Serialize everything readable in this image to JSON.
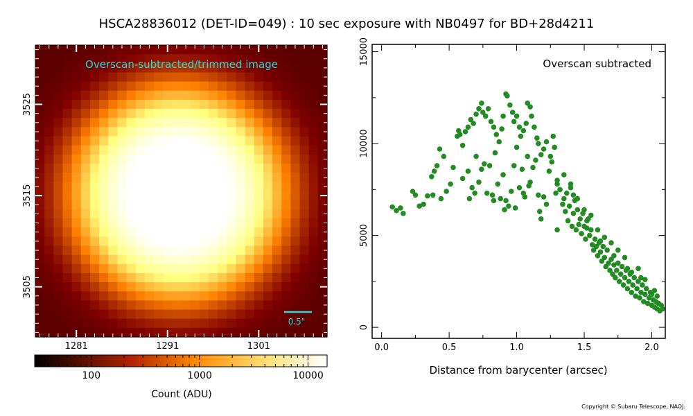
{
  "title": "HSCA28836012 (DET-ID=049) :  10 sec exposure with NB0497 for BD+28d4211",
  "copyright": "Copyright © Subaru Telescope, NAOJ.",
  "image_panel": {
    "label": "Overscan-subtracted/trimmed image",
    "label_color": "#22dddd",
    "scalebar_label": "0.5\"",
    "x_ticks": [
      "1281",
      "1291",
      "1301"
    ],
    "y_ticks": [
      "3505",
      "3515",
      "3525"
    ],
    "x_tick_values": [
      1281,
      1291,
      1301
    ],
    "y_tick_values": [
      3505,
      3515,
      3525
    ],
    "x_range": [
      1276.5,
      1308.5
    ],
    "y_range": [
      3499.5,
      3531.5
    ]
  },
  "colorbar": {
    "label": "Count (ADU)",
    "tick_labels": [
      "100",
      "1000",
      "10000"
    ],
    "range": [
      30,
      15000
    ],
    "scale": "log",
    "colormap": "afmhot"
  },
  "chart_data": {
    "type": "scatter",
    "annotation": "Overscan subtracted",
    "xlabel": "Distance from barycenter (arcsec)",
    "ylabel": "",
    "x_ticks": [
      "0.0",
      "0.5",
      "1.0",
      "1.5",
      "2.0"
    ],
    "y_ticks": [
      "0",
      "5000",
      "10000",
      "15000"
    ],
    "xlim": [
      -0.07,
      2.1
    ],
    "ylim": [
      -600,
      15400
    ],
    "marker_color": "#228b22",
    "series": [
      {
        "points": [
          [
            0.08,
            6550
          ],
          [
            0.11,
            6350
          ],
          [
            0.14,
            6500
          ],
          [
            0.16,
            6200
          ],
          [
            0.23,
            7400
          ],
          [
            0.25,
            7200
          ],
          [
            0.28,
            6600
          ],
          [
            0.31,
            6700
          ],
          [
            0.34,
            7150
          ],
          [
            0.37,
            8200
          ],
          [
            0.39,
            8500
          ],
          [
            0.41,
            8800
          ],
          [
            0.43,
            9700
          ],
          [
            0.46,
            9300
          ],
          [
            0.38,
            7200
          ],
          [
            0.44,
            7000
          ],
          [
            0.48,
            7400
          ],
          [
            0.51,
            7800
          ],
          [
            0.53,
            8700
          ],
          [
            0.56,
            10400
          ],
          [
            0.57,
            10700
          ],
          [
            0.58,
            10500
          ],
          [
            0.6,
            9900
          ],
          [
            0.62,
            10650
          ],
          [
            0.64,
            10900
          ],
          [
            0.66,
            11300
          ],
          [
            0.68,
            11100
          ],
          [
            0.7,
            11600
          ],
          [
            0.72,
            11900
          ],
          [
            0.74,
            12200
          ],
          [
            0.75,
            11700
          ],
          [
            0.77,
            11500
          ],
          [
            0.79,
            11900
          ],
          [
            0.81,
            11200
          ],
          [
            0.83,
            10900
          ],
          [
            0.85,
            10500
          ],
          [
            0.87,
            10100
          ],
          [
            0.89,
            10800
          ],
          [
            0.9,
            11500
          ],
          [
            0.92,
            12700
          ],
          [
            0.93,
            12600
          ],
          [
            0.95,
            12100
          ],
          [
            0.97,
            11700
          ],
          [
            0.98,
            11200
          ],
          [
            1.0,
            11500
          ],
          [
            1.02,
            10900
          ],
          [
            1.03,
            10400
          ],
          [
            1.05,
            10700
          ],
          [
            1.07,
            11100
          ],
          [
            1.08,
            12200
          ],
          [
            1.1,
            12000
          ],
          [
            1.11,
            11500
          ],
          [
            1.13,
            10900
          ],
          [
            1.15,
            10300
          ],
          [
            0.6,
            8100
          ],
          [
            0.64,
            8500
          ],
          [
            0.67,
            7600
          ],
          [
            0.7,
            9300
          ],
          [
            0.72,
            7900
          ],
          [
            0.76,
            8900
          ],
          [
            0.78,
            7300
          ],
          [
            0.8,
            8800
          ],
          [
            0.82,
            7200
          ],
          [
            0.84,
            9500
          ],
          [
            0.86,
            7800
          ],
          [
            0.88,
            7000
          ],
          [
            0.9,
            8300
          ],
          [
            0.92,
            6900
          ],
          [
            0.94,
            6600
          ],
          [
            0.96,
            7400
          ],
          [
            0.98,
            8800
          ],
          [
            1.0,
            9800
          ],
          [
            1.02,
            7600
          ],
          [
            1.04,
            8600
          ],
          [
            1.06,
            7100
          ],
          [
            1.08,
            9300
          ],
          [
            1.1,
            7900
          ],
          [
            1.12,
            8700
          ],
          [
            1.14,
            9100
          ],
          [
            0.65,
            7000
          ],
          [
            0.69,
            7300
          ],
          [
            0.74,
            8600
          ],
          [
            0.83,
            6900
          ],
          [
            0.91,
            6400
          ],
          [
            0.99,
            6500
          ],
          [
            1.05,
            7300
          ],
          [
            1.09,
            7700
          ],
          [
            1.16,
            10000
          ],
          [
            1.18,
            9400
          ],
          [
            1.16,
            7200
          ],
          [
            1.17,
            6300
          ],
          [
            1.18,
            5900
          ],
          [
            1.2,
            7100
          ],
          [
            1.22,
            6700
          ],
          [
            1.24,
            8500
          ],
          [
            1.26,
            9000
          ],
          [
            1.27,
            10400
          ],
          [
            1.28,
            9800
          ],
          [
            1.3,
            8000
          ],
          [
            1.2,
            9700
          ],
          [
            1.22,
            10100
          ],
          [
            1.25,
            9300
          ],
          [
            1.29,
            7300
          ],
          [
            1.3,
            5300
          ],
          [
            1.3,
            7800
          ],
          [
            1.32,
            7500
          ],
          [
            1.34,
            6700
          ],
          [
            1.35,
            7000
          ],
          [
            1.36,
            6300
          ],
          [
            1.37,
            7300
          ],
          [
            1.38,
            5800
          ],
          [
            1.39,
            6600
          ],
          [
            1.4,
            7600
          ],
          [
            1.41,
            5500
          ],
          [
            1.42,
            6200
          ],
          [
            1.43,
            6900
          ],
          [
            1.44,
            5300
          ],
          [
            1.45,
            6400
          ],
          [
            1.46,
            5600
          ],
          [
            1.47,
            5900
          ],
          [
            1.48,
            5100
          ],
          [
            1.49,
            6200
          ],
          [
            1.5,
            5500
          ],
          [
            1.51,
            4800
          ],
          [
            1.52,
            5400
          ],
          [
            1.53,
            5900
          ],
          [
            1.54,
            5000
          ],
          [
            1.55,
            5300
          ],
          [
            1.56,
            4500
          ],
          [
            1.57,
            4200
          ],
          [
            1.58,
            4800
          ],
          [
            1.59,
            4400
          ],
          [
            1.6,
            3900
          ],
          [
            1.61,
            4600
          ],
          [
            1.62,
            4100
          ],
          [
            1.63,
            3600
          ],
          [
            1.64,
            4400
          ],
          [
            1.65,
            3800
          ],
          [
            1.66,
            3300
          ],
          [
            1.67,
            4200
          ],
          [
            1.68,
            3500
          ],
          [
            1.69,
            3100
          ],
          [
            1.7,
            3700
          ],
          [
            1.71,
            2900
          ],
          [
            1.72,
            3400
          ],
          [
            1.73,
            2700
          ],
          [
            1.74,
            3100
          ],
          [
            1.75,
            3500
          ],
          [
            1.76,
            2500
          ],
          [
            1.77,
            2900
          ],
          [
            1.78,
            3300
          ],
          [
            1.79,
            2300
          ],
          [
            1.8,
            2700
          ],
          [
            1.81,
            3100
          ],
          [
            1.82,
            2100
          ],
          [
            1.83,
            2500
          ],
          [
            1.84,
            2900
          ],
          [
            1.85,
            1900
          ],
          [
            1.86,
            2300
          ],
          [
            1.87,
            2700
          ],
          [
            1.88,
            1700
          ],
          [
            1.89,
            2100
          ],
          [
            1.9,
            2500
          ],
          [
            1.91,
            1600
          ],
          [
            1.92,
            1900
          ],
          [
            1.93,
            2300
          ],
          [
            1.94,
            1400
          ],
          [
            1.95,
            1800
          ],
          [
            1.96,
            2100
          ],
          [
            1.97,
            1300
          ],
          [
            1.98,
            1600
          ],
          [
            1.99,
            1900
          ],
          [
            2.0,
            1200
          ],
          [
            2.01,
            1500
          ],
          [
            2.02,
            1100
          ],
          [
            2.03,
            1400
          ],
          [
            2.04,
            1000
          ],
          [
            2.05,
            1300
          ],
          [
            2.06,
            900
          ],
          [
            2.07,
            1200
          ],
          [
            2.08,
            1000
          ],
          [
            2.09,
            1300
          ],
          [
            2.04,
            1700
          ],
          [
            2.0,
            1800
          ],
          [
            1.95,
            2600
          ],
          [
            1.9,
            3200
          ],
          [
            1.85,
            3000
          ],
          [
            1.8,
            3800
          ],
          [
            1.75,
            4200
          ],
          [
            1.7,
            4600
          ],
          [
            1.65,
            4900
          ],
          [
            1.6,
            5300
          ],
          [
            1.55,
            6100
          ],
          [
            1.5,
            6400
          ],
          [
            1.45,
            7000
          ],
          [
            1.4,
            7800
          ],
          [
            1.35,
            8300
          ],
          [
            1.42,
            7200
          ],
          [
            1.52,
            5800
          ],
          [
            1.62,
            4700
          ],
          [
            1.72,
            3900
          ],
          [
            1.82,
            3200
          ],
          [
            1.92,
            2700
          ],
          [
            2.02,
            2000
          ]
        ]
      }
    ]
  }
}
